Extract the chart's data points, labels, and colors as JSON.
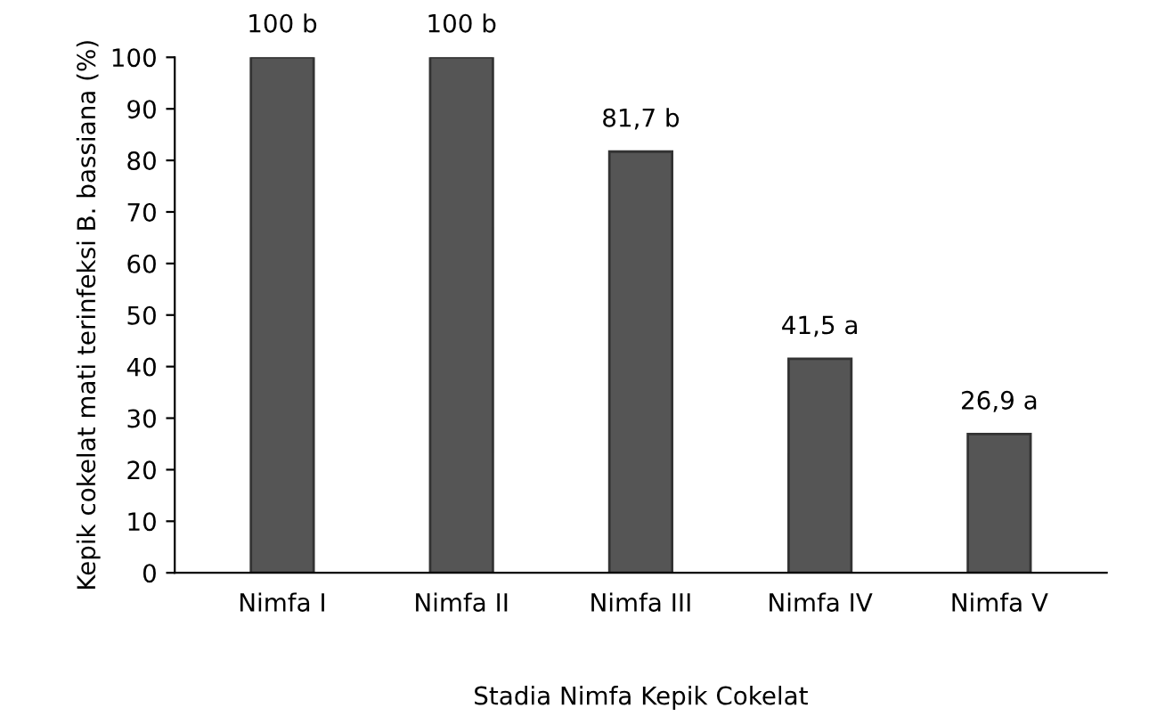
{
  "chart_data": {
    "type": "bar",
    "xlabel": "Stadia Nimfa Kepik Cokelat",
    "ylabel": "Kepik cokelat mati terinfeksi B. bassiana (%)",
    "categories": [
      "Nimfa I",
      "Nimfa II",
      "Nimfa III",
      "Nimfa IV",
      "Nimfa V"
    ],
    "values": [
      100,
      100,
      81.7,
      41.5,
      26.9
    ],
    "value_labels": [
      "100 b",
      "100 b",
      "81,7 b",
      "41,5 a",
      "26,9 a"
    ],
    "color": "#555555",
    "ylim": [
      0,
      100
    ],
    "yticks": [
      0,
      10,
      20,
      30,
      40,
      50,
      60,
      70,
      80,
      90,
      100
    ],
    "grid": false
  }
}
